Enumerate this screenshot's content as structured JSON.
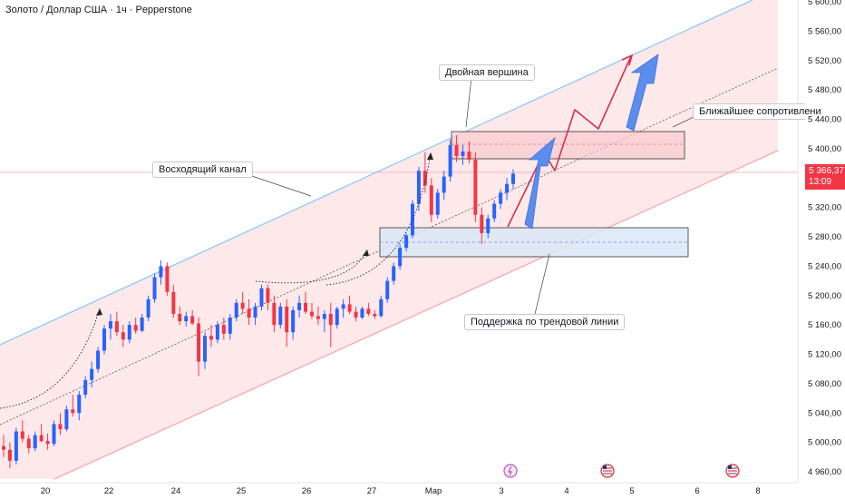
{
  "header": {
    "title": "Золото / Доллар США · 1ч · Pepperstone"
  },
  "annotations": {
    "double_top": "Двойная вершина",
    "channel": "Восходящий канал",
    "resistance": "Ближайшее сопротивлени",
    "support": "Поддержка по трендовой линии"
  },
  "price_tag": {
    "price": "5 366,37",
    "countdown": "13:09"
  },
  "chart_data": {
    "type": "candlestick",
    "title": "Золото / Доллар США · 1ч · Pepperstone",
    "y_ticks": [
      "5 600,00",
      "5 560,00",
      "5 520,00",
      "5 480,00",
      "5 440,00",
      "5 400,00",
      "5 320,00",
      "5 280,00",
      "5 240,00",
      "5 200,00",
      "5 160,00",
      "5 120,00",
      "5 080,00",
      "5 040,00",
      "5 000,00",
      "4 960,00"
    ],
    "x_ticks": [
      "20",
      "22",
      "24",
      "25",
      "26",
      "27",
      "Мар",
      "3",
      "4",
      "5",
      "6",
      "8"
    ],
    "ylim": [
      4950,
      5610
    ],
    "last_price": 5366.37,
    "candles": [
      [
        4995,
        5010,
        4980,
        4990
      ],
      [
        4990,
        5000,
        4965,
        4975
      ],
      [
        4975,
        5020,
        4970,
        5015
      ],
      [
        5015,
        5030,
        5000,
        5005
      ],
      [
        5005,
        5010,
        4985,
        4992
      ],
      [
        4992,
        5015,
        4988,
        5010
      ],
      [
        5010,
        5025,
        5000,
        5002
      ],
      [
        5002,
        5012,
        4990,
        4998
      ],
      [
        4998,
        5030,
        4995,
        5025
      ],
      [
        5025,
        5040,
        5010,
        5018
      ],
      [
        5018,
        5050,
        5015,
        5045
      ],
      [
        5045,
        5065,
        5035,
        5040
      ],
      [
        5040,
        5070,
        5030,
        5065
      ],
      [
        5065,
        5090,
        5060,
        5085
      ],
      [
        5085,
        5110,
        5075,
        5100
      ],
      [
        5100,
        5130,
        5095,
        5125
      ],
      [
        5125,
        5160,
        5120,
        5155
      ],
      [
        5155,
        5175,
        5140,
        5165
      ],
      [
        5165,
        5178,
        5145,
        5150
      ],
      [
        5150,
        5160,
        5130,
        5140
      ],
      [
        5140,
        5165,
        5135,
        5160
      ],
      [
        5160,
        5170,
        5148,
        5152
      ],
      [
        5152,
        5175,
        5150,
        5170
      ],
      [
        5170,
        5200,
        5165,
        5195
      ],
      [
        5195,
        5230,
        5190,
        5225
      ],
      [
        5225,
        5248,
        5215,
        5240
      ],
      [
        5240,
        5245,
        5200,
        5205
      ],
      [
        5205,
        5215,
        5170,
        5175
      ],
      [
        5175,
        5185,
        5160,
        5165
      ],
      [
        5165,
        5178,
        5158,
        5172
      ],
      [
        5172,
        5180,
        5160,
        5162
      ],
      [
        5162,
        5170,
        5090,
        5110
      ],
      [
        5110,
        5150,
        5100,
        5145
      ],
      [
        5145,
        5160,
        5130,
        5140
      ],
      [
        5140,
        5165,
        5135,
        5160
      ],
      [
        5160,
        5170,
        5140,
        5148
      ],
      [
        5148,
        5175,
        5140,
        5170
      ],
      [
        5170,
        5195,
        5165,
        5190
      ],
      [
        5190,
        5205,
        5175,
        5182
      ],
      [
        5182,
        5195,
        5160,
        5170
      ],
      [
        5170,
        5190,
        5160,
        5185
      ],
      [
        5185,
        5215,
        5180,
        5210
      ],
      [
        5210,
        5215,
        5180,
        5190
      ],
      [
        5190,
        5200,
        5150,
        5160
      ],
      [
        5160,
        5190,
        5155,
        5185
      ],
      [
        5185,
        5195,
        5130,
        5150
      ],
      [
        5150,
        5185,
        5140,
        5180
      ],
      [
        5180,
        5200,
        5170,
        5190
      ],
      [
        5190,
        5205,
        5175,
        5178
      ],
      [
        5178,
        5190,
        5168,
        5172
      ],
      [
        5172,
        5185,
        5160,
        5168
      ],
      [
        5168,
        5180,
        5150,
        5175
      ],
      [
        5175,
        5190,
        5130,
        5160
      ],
      [
        5160,
        5185,
        5155,
        5182
      ],
      [
        5182,
        5195,
        5170,
        5188
      ],
      [
        5188,
        5200,
        5175,
        5178
      ],
      [
        5178,
        5185,
        5165,
        5170
      ],
      [
        5170,
        5185,
        5168,
        5182
      ],
      [
        5182,
        5190,
        5172,
        5175
      ],
      [
        5175,
        5180,
        5168,
        5172
      ],
      [
        5172,
        5200,
        5170,
        5195
      ],
      [
        5195,
        5225,
        5190,
        5220
      ],
      [
        5220,
        5245,
        5215,
        5240
      ],
      [
        5240,
        5270,
        5235,
        5265
      ],
      [
        5265,
        5285,
        5260,
        5282
      ],
      [
        5282,
        5330,
        5278,
        5325
      ],
      [
        5325,
        5375,
        5315,
        5370
      ],
      [
        5370,
        5395,
        5340,
        5350
      ],
      [
        5350,
        5360,
        5300,
        5310
      ],
      [
        5310,
        5345,
        5305,
        5340
      ],
      [
        5340,
        5370,
        5330,
        5362
      ],
      [
        5362,
        5412,
        5355,
        5405
      ],
      [
        5405,
        5418,
        5382,
        5390
      ],
      [
        5390,
        5405,
        5378,
        5396
      ],
      [
        5396,
        5410,
        5380,
        5385
      ],
      [
        5385,
        5395,
        5300,
        5310
      ],
      [
        5310,
        5320,
        5270,
        5285
      ],
      [
        5285,
        5310,
        5278,
        5305
      ],
      [
        5305,
        5330,
        5300,
        5325
      ],
      [
        5325,
        5345,
        5318,
        5340
      ],
      [
        5340,
        5360,
        5330,
        5352
      ],
      [
        5352,
        5372,
        5345,
        5366
      ]
    ]
  },
  "colors": {
    "up": "#2962ff",
    "down": "#f23645",
    "channel_fill": "#fde9ea",
    "channel_upper": "#90caf9",
    "channel_lower": "#f7a9b0",
    "resistance_fill": "#f8c9cd",
    "support_fill": "#dbe6f7",
    "red_path": "#d32f54",
    "blue_arrow": "#5b8def"
  },
  "icons": [
    "lightning-icon",
    "us-flag-icon",
    "us-flag-icon"
  ]
}
